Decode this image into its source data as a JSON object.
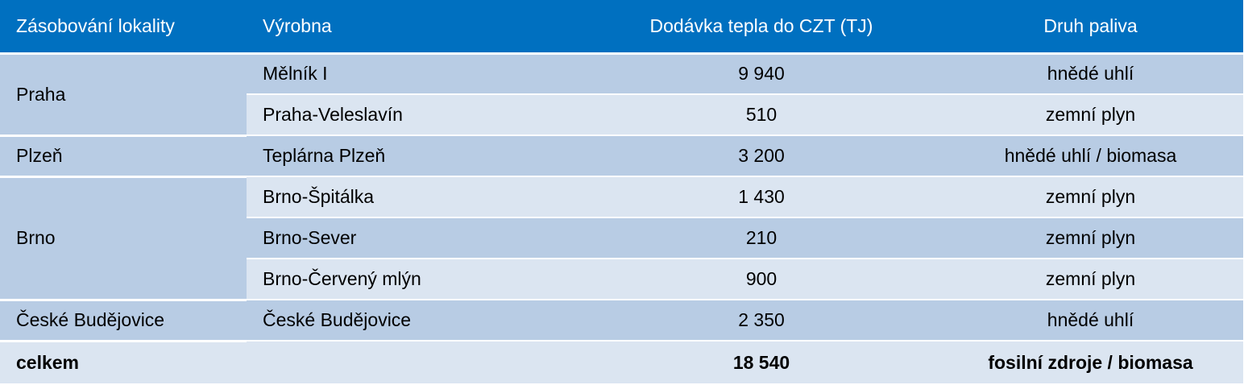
{
  "headers": {
    "locality": "Zásobování lokality",
    "plant": "Výrobna",
    "supply": "Dodávka tepla do CZT (TJ)",
    "fuel": "Druh paliva"
  },
  "groups": [
    {
      "locality": "Praha",
      "rows": [
        {
          "plant": "Mělník I",
          "supply": "9 940",
          "fuel": "hnědé uhlí"
        },
        {
          "plant": "Praha-Veleslavín",
          "supply": "510",
          "fuel": "zemní plyn"
        }
      ]
    },
    {
      "locality": "Plzeň",
      "rows": [
        {
          "plant": "Teplárna Plzeň",
          "supply": "3 200",
          "fuel": "hnědé uhlí / biomasa"
        }
      ]
    },
    {
      "locality": "Brno",
      "rows": [
        {
          "plant": "Brno-Špitálka",
          "supply": "1 430",
          "fuel": "zemní plyn"
        },
        {
          "plant": "Brno-Sever",
          "supply": "210",
          "fuel": "zemní plyn"
        },
        {
          "plant": "Brno-Červený mlýn",
          "supply": "900",
          "fuel": "zemní plyn"
        }
      ]
    },
    {
      "locality": "České Budějovice",
      "rows": [
        {
          "plant": "České Budějovice",
          "supply": "2 350",
          "fuel": "hnědé uhlí"
        }
      ]
    }
  ],
  "total": {
    "label": "celkem",
    "supply": "18 540",
    "fuel": "fosilní zdroje / biomasa"
  },
  "colors": {
    "header_bg": "#0070c0",
    "row_dark": "#b8cce4",
    "row_light": "#dbe5f1"
  }
}
